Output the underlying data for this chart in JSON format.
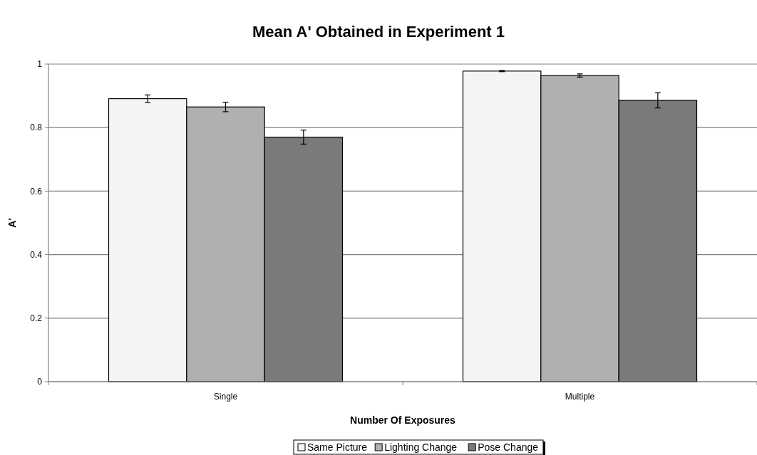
{
  "chart_data": {
    "type": "bar",
    "title": "Mean A' Obtained in Experiment 1",
    "xlabel": "Number Of Exposures",
    "ylabel": "A'",
    "categories": [
      "Single",
      "Multiple"
    ],
    "series": [
      {
        "name": "Same Picture",
        "color": "#f4f4f4",
        "values": [
          0.891,
          0.978
        ],
        "errors": [
          0.012,
          0.002
        ]
      },
      {
        "name": "Lighting Change",
        "color": "#b0b0b0",
        "values": [
          0.865,
          0.964
        ],
        "errors": [
          0.015,
          0.005
        ]
      },
      {
        "name": "Pose Change",
        "color": "#7a7a7a",
        "values": [
          0.77,
          0.886
        ],
        "errors": [
          0.022,
          0.024
        ]
      }
    ],
    "ylim": [
      0,
      1
    ],
    "yticks": [
      0,
      0.2,
      0.4,
      0.6,
      0.8,
      1
    ],
    "grid": "y",
    "legend": "bottom"
  }
}
